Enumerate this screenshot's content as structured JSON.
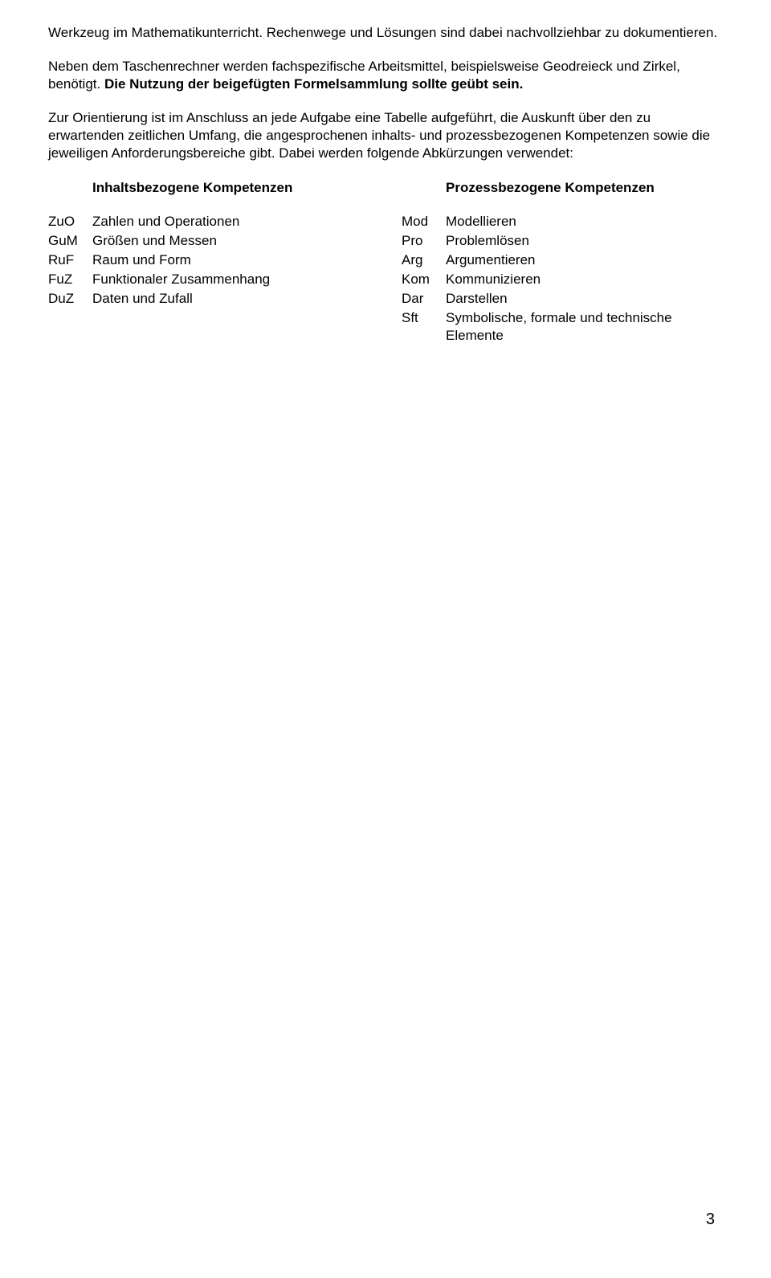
{
  "paragraphs": {
    "p1": "Werkzeug im Mathematikunterricht. Rechenwege und Lösungen sind dabei nachvollziehbar zu dokumentieren.",
    "p2_part1": "Neben dem Taschenrechner werden fachspezifische Arbeitsmittel, beispielsweise Geodreieck und Zirkel, benötigt. ",
    "p2_bold": "Die Nutzung der beigefügten Formelsammlung sollte geübt sein.",
    "p3": "Zur Orientierung ist im Anschluss an jede Aufgabe eine Tabelle aufgeführt, die Auskunft über den zu erwartenden zeitlichen Umfang, die angesprochenen inhalts- und prozessbezogenen Kompetenzen sowie die jeweiligen Anforderungsbereiche gibt. Dabei werden folgende Abkürzungen verwendet:"
  },
  "left_column": {
    "header": "Inhaltsbezogene Kompetenzen",
    "items": [
      {
        "abbr": "ZuO",
        "desc": "Zahlen und Operationen"
      },
      {
        "abbr": "GuM",
        "desc": "Größen und Messen"
      },
      {
        "abbr": "RuF",
        "desc": "Raum und Form"
      },
      {
        "abbr": "FuZ",
        "desc": "Funktionaler Zusammenhang"
      },
      {
        "abbr": "DuZ",
        "desc": "Daten und Zufall"
      }
    ]
  },
  "right_column": {
    "header": "Prozessbezogene Kompetenzen",
    "items": [
      {
        "abbr": "Mod",
        "desc": "Modellieren"
      },
      {
        "abbr": "Pro",
        "desc": "Problemlösen"
      },
      {
        "abbr": "Arg",
        "desc": "Argumentieren"
      },
      {
        "abbr": "Kom",
        "desc": "Kommunizieren"
      },
      {
        "abbr": "Dar",
        "desc": "Darstellen"
      },
      {
        "abbr": "Sft",
        "desc": "Symbolische, formale und technische Elemente"
      }
    ]
  },
  "page_number": "3"
}
